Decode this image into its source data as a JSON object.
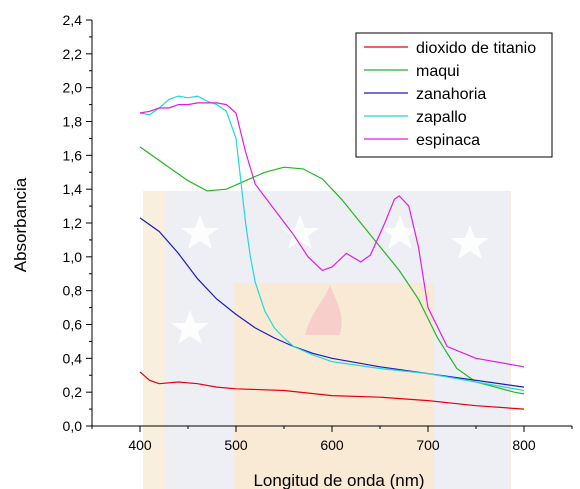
{
  "chart_data": {
    "type": "line",
    "xlabel": "Longitud de onda (nm)",
    "ylabel": "Absorbancia",
    "xlim": [
      350,
      850
    ],
    "ylim": [
      0,
      2.4
    ],
    "x_ticks": [
      "400",
      "500",
      "600",
      "700",
      "800"
    ],
    "y_ticks": [
      "0,0",
      "0,2",
      "0,4",
      "0,6",
      "0,8",
      "1,0",
      "1,2",
      "1,4",
      "1,6",
      "1,8",
      "2,0",
      "2,2",
      "2,4"
    ],
    "grid": false,
    "legend_position": "top-right",
    "watermark": "university-seal",
    "series": [
      {
        "name": "dioxido de titanio",
        "color": "#e8000b",
        "x": [
          400,
          410,
          420,
          440,
          460,
          480,
          500,
          550,
          600,
          650,
          700,
          750,
          800
        ],
        "y": [
          0.32,
          0.27,
          0.25,
          0.26,
          0.25,
          0.23,
          0.22,
          0.21,
          0.18,
          0.17,
          0.15,
          0.12,
          0.1
        ]
      },
      {
        "name": "maqui",
        "color": "#22b822",
        "x": [
          400,
          410,
          430,
          450,
          470,
          490,
          510,
          530,
          550,
          570,
          590,
          610,
          630,
          650,
          670,
          690,
          710,
          730,
          750,
          770,
          790,
          800
        ],
        "y": [
          1.65,
          1.61,
          1.53,
          1.45,
          1.39,
          1.4,
          1.45,
          1.5,
          1.53,
          1.52,
          1.46,
          1.34,
          1.2,
          1.06,
          0.92,
          0.75,
          0.52,
          0.34,
          0.26,
          0.23,
          0.2,
          0.19
        ]
      },
      {
        "name": "zanahoria",
        "color": "#1a1ac0",
        "x": [
          400,
          420,
          440,
          460,
          480,
          500,
          520,
          540,
          560,
          580,
          600,
          650,
          700,
          750,
          800
        ],
        "y": [
          1.23,
          1.15,
          1.02,
          0.87,
          0.75,
          0.66,
          0.58,
          0.52,
          0.47,
          0.43,
          0.4,
          0.35,
          0.31,
          0.27,
          0.23
        ]
      },
      {
        "name": "zapallo",
        "color": "#22d8d8",
        "x": [
          400,
          410,
          420,
          430,
          440,
          450,
          460,
          470,
          480,
          490,
          500,
          505,
          510,
          515,
          520,
          530,
          540,
          550,
          560,
          580,
          600,
          650,
          700,
          750,
          800
        ],
        "y": [
          1.85,
          1.84,
          1.88,
          1.93,
          1.95,
          1.94,
          1.95,
          1.92,
          1.9,
          1.86,
          1.7,
          1.45,
          1.2,
          1.0,
          0.85,
          0.68,
          0.58,
          0.52,
          0.47,
          0.42,
          0.38,
          0.34,
          0.31,
          0.26,
          0.21
        ]
      },
      {
        "name": "espinaca",
        "color": "#e21ce2",
        "x": [
          400,
          410,
          420,
          430,
          440,
          450,
          460,
          470,
          480,
          490,
          500,
          510,
          520,
          540,
          560,
          575,
          590,
          600,
          615,
          630,
          640,
          655,
          665,
          670,
          680,
          690,
          700,
          720,
          750,
          800
        ],
        "y": [
          1.85,
          1.86,
          1.88,
          1.88,
          1.9,
          1.9,
          1.91,
          1.91,
          1.91,
          1.9,
          1.85,
          1.62,
          1.43,
          1.28,
          1.13,
          1.0,
          0.92,
          0.94,
          1.02,
          0.97,
          1.01,
          1.2,
          1.34,
          1.36,
          1.3,
          1.06,
          0.7,
          0.47,
          0.4,
          0.35
        ]
      }
    ]
  }
}
